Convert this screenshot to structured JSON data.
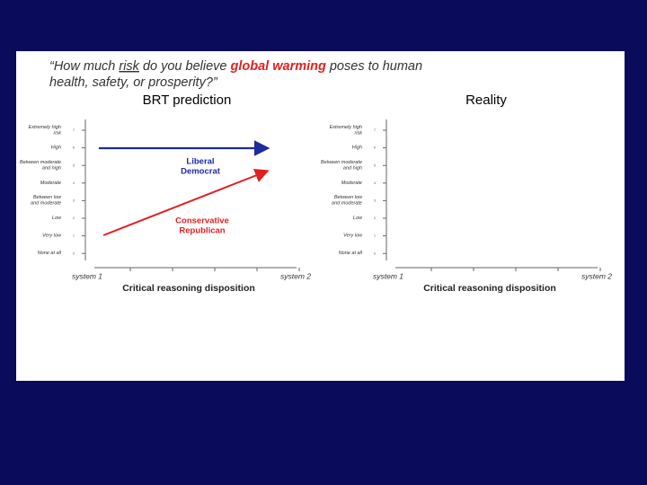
{
  "title": {
    "line1": [
      "“How much ",
      "risk",
      " do you believe ",
      "global warming",
      " poses to human"
    ],
    "line2": "health, safety, or prosperity?”"
  },
  "panels": [
    {
      "label": "BRT prediction",
      "y_labels": [
        [
          "Extremely high",
          "risk"
        ],
        [
          "High"
        ],
        [
          "Between moderate",
          "and high"
        ],
        [
          "Moderate"
        ],
        [
          "Between low",
          "and moderate"
        ],
        [
          "Low"
        ],
        [
          "Very low"
        ],
        [
          "None at all"
        ]
      ],
      "y_ticks": [
        "7",
        "6",
        "5",
        "4",
        "3",
        "2",
        "1",
        "0"
      ],
      "x_start": "system 1",
      "x_end": "system 2",
      "x_title": "Critical reasoning disposition",
      "annotations": [
        [
          "Liberal",
          "Democrat"
        ],
        [
          "Conservative",
          "Republican"
        ]
      ]
    },
    {
      "label": "Reality",
      "y_labels": [
        [
          "Extremely high",
          "risk"
        ],
        [
          "High"
        ],
        [
          "Between moderate",
          "and high"
        ],
        [
          "Moderate"
        ],
        [
          "Between low",
          "and moderate"
        ],
        [
          "Low"
        ],
        [
          "Very low"
        ],
        [
          "None at all"
        ]
      ],
      "y_ticks": [
        "7",
        "6",
        "5",
        "4",
        "3",
        "2",
        "1",
        "0"
      ],
      "x_start": "system 1",
      "x_end": "system 2",
      "x_title": "Critical reasoning disposition"
    }
  ]
}
